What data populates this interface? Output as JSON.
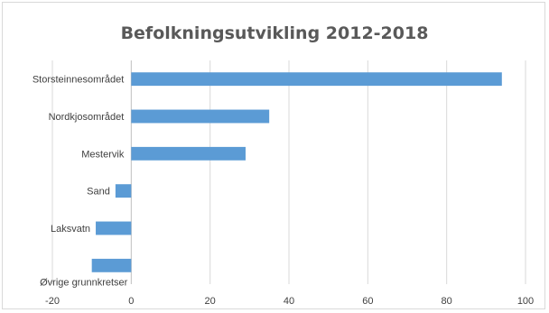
{
  "chart_data": {
    "type": "bar",
    "orientation": "horizontal",
    "title": "Befolkningsutvikling 2012-2018",
    "categories": [
      "Storsteinnesområdet",
      "Nordkjosområdet",
      "Mestervik",
      "Sand",
      "Laksvatn",
      "Øvrige grunnkretser"
    ],
    "values": [
      94,
      35,
      29,
      -4,
      -9,
      -10
    ],
    "xlim": [
      -20,
      100
    ],
    "xticks": [
      -20,
      0,
      20,
      40,
      60,
      80,
      100
    ],
    "grid": true,
    "legend": "none",
    "colors": {
      "bar": "#5b9bd5",
      "grid": "#d9d9d9",
      "axis": "#bfbfbf"
    }
  }
}
